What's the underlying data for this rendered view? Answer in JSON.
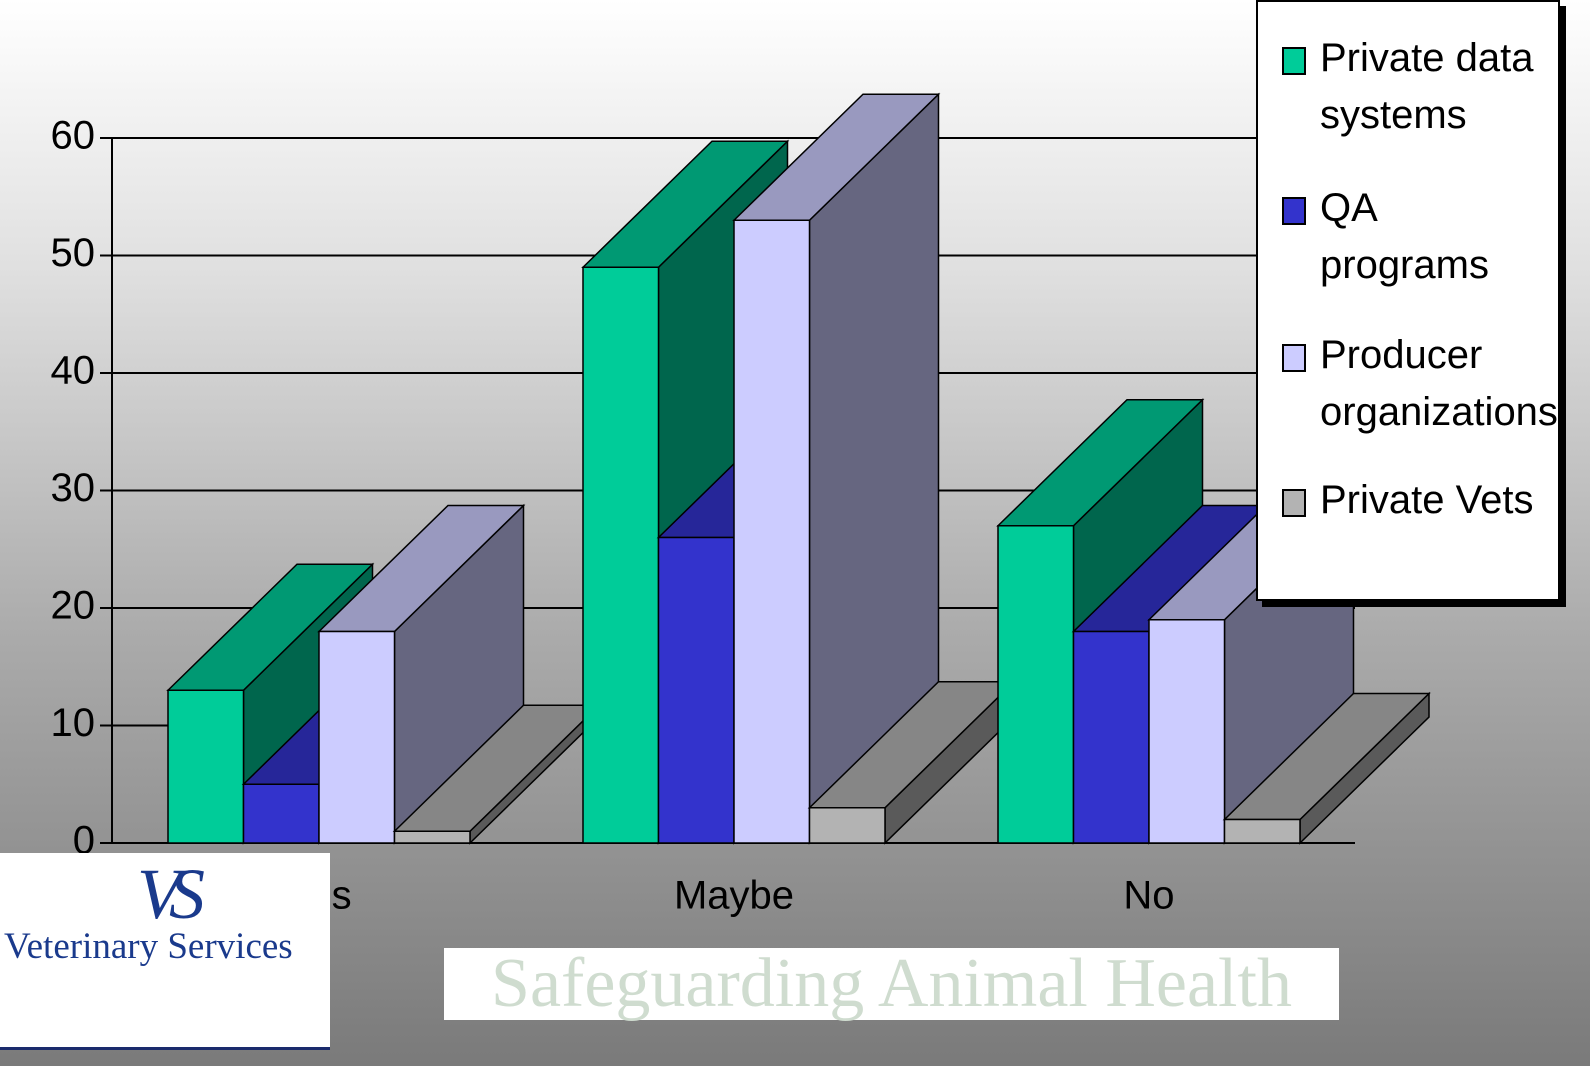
{
  "chart_data": {
    "type": "bar3d",
    "categories": [
      "Yes",
      "Maybe",
      "No"
    ],
    "series": [
      {
        "name": "Private data systems",
        "color": "#00cc99",
        "values": [
          13,
          49,
          27
        ]
      },
      {
        "name": "QA programs",
        "color": "#3333cc",
        "values": [
          5,
          26,
          18
        ]
      },
      {
        "name": "Producer organizations",
        "color": "#ccccff",
        "values": [
          18,
          53,
          19
        ]
      },
      {
        "name": "Private Vets",
        "color": "#b3b3b3",
        "values": [
          1,
          3,
          2
        ]
      }
    ],
    "ylim": [
      0,
      60
    ],
    "yticks": [
      0,
      10,
      20,
      30,
      40,
      50,
      60
    ],
    "grid": true,
    "legend": "top-right"
  },
  "logo": {
    "mark": "VS",
    "name": "Veterinary Services"
  },
  "tagline": "Safeguarding Animal Health"
}
